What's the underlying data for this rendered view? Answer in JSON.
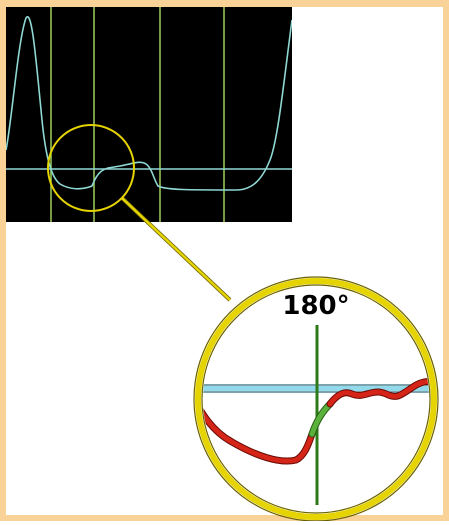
{
  "figure": {
    "phase_label": "180°",
    "colors": {
      "frame": "#f8d296",
      "scope_bg": "#000000",
      "scope_grid": "#9fd05e",
      "scope_trace": "#8fd8d4",
      "magnifier_ring": "#e6d400",
      "connector": "#d6c700",
      "zoom_baseline": "#3aa8c8",
      "zoom_marker": "#2c7a18",
      "zoom_trace_red": "#d42518",
      "zoom_trace_green": "#5ab23c"
    }
  }
}
